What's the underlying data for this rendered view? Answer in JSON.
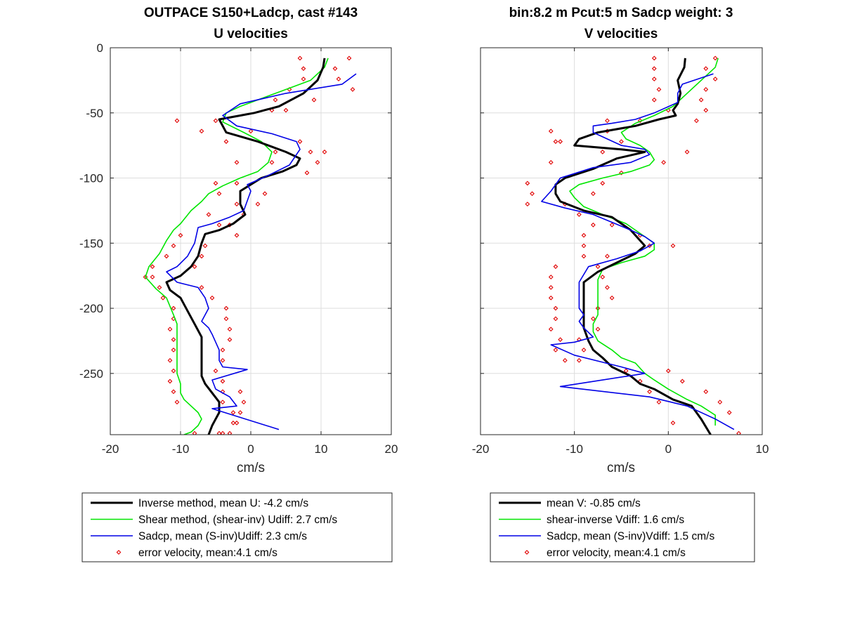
{
  "colors": {
    "inverse": "#000000",
    "shear": "#00e600",
    "sadcp": "#0000e6",
    "error": "#e00000",
    "grid": "#dddddd",
    "axes": "#262626"
  },
  "chart_data": [
    {
      "type": "line",
      "title": "OUTPACE S150+Ladcp, cast #143",
      "subtitle": "U velocities",
      "xlabel": "cm/s",
      "ylabel": "",
      "xlim": [
        -20,
        20
      ],
      "ylim": [
        -297,
        0
      ],
      "xticks": [
        -20,
        -10,
        0,
        10,
        20
      ],
      "yticks": [
        0,
        -50,
        -100,
        -150,
        -200,
        -250
      ],
      "grid": true,
      "legend_position": "below",
      "series": [
        {
          "name": "Inverse method, mean U:  -4.2 cm/s",
          "style": "line-thick",
          "color_key": "inverse",
          "x": [
            10.5,
            10.3,
            9.5,
            7.5,
            4.0,
            0.5,
            -1.5,
            -4.5,
            -3.5,
            1.0,
            5.0,
            7.0,
            6.5,
            4.5,
            1.5,
            -1.5,
            -1.5,
            -0.8,
            -2.5,
            -4.5,
            -6.5,
            -7.0,
            -7.5,
            -8.5,
            -10.0,
            -12.0,
            -11.5,
            -10.0,
            -9.0,
            -8.0,
            -7.0,
            -7.0,
            -7.0,
            -7.0,
            -6.5,
            -5.5,
            -4.5,
            -4.5,
            -5.0,
            -5.5,
            -6.0
          ],
          "y": [
            -8,
            -15,
            -25,
            -35,
            -45,
            -50,
            -52,
            -55,
            -65,
            -72,
            -80,
            -85,
            -90,
            -95,
            -100,
            -110,
            -120,
            -128,
            -135,
            -140,
            -143,
            -150,
            -160,
            -168,
            -175,
            -180,
            -186,
            -192,
            -202,
            -212,
            -222,
            -232,
            -242,
            -252,
            -258,
            -265,
            -272,
            -280,
            -285,
            -290,
            -297
          ]
        },
        {
          "name": "Shear method, (shear-inv)  Udiff:  2.7 cm/s",
          "style": "line",
          "color_key": "shear",
          "x": [
            11.0,
            10.5,
            8.5,
            5.0,
            1.0,
            -1.5,
            -3.5,
            -4.0,
            -1.0,
            1.5,
            3.0,
            2.5,
            1.0,
            -1.5,
            -4.0,
            -6.0,
            -7.0,
            -8.5,
            -10.0,
            -11.0,
            -12.0,
            -13.0,
            -14.5,
            -15.0,
            -13.5,
            -12.0,
            -11.0,
            -10.5,
            -10.5,
            -10.5,
            -10.5,
            -10.5,
            -10.0,
            -10.0,
            -9.5,
            -8.5,
            -7.5,
            -7.0,
            -7.5,
            -8.5,
            -9.5
          ],
          "y": [
            -8,
            -15,
            -25,
            -32,
            -40,
            -45,
            -50,
            -57,
            -65,
            -72,
            -80,
            -88,
            -95,
            -100,
            -106,
            -112,
            -118,
            -125,
            -135,
            -140,
            -148,
            -158,
            -168,
            -176,
            -185,
            -192,
            -205,
            -212,
            -222,
            -232,
            -242,
            -250,
            -258,
            -265,
            -270,
            -275,
            -280,
            -285,
            -290,
            -295,
            -297
          ]
        },
        {
          "name": "Sadcp, mean (S-inv)Udiff: 2.3 cm/s",
          "style": "line",
          "color_key": "sadcp",
          "x": [
            15.0,
            13.0,
            5.0,
            -1.5,
            -4.0,
            -2.0,
            3.0,
            6.5,
            7.0,
            5.5,
            2.5,
            -0.5,
            0.0,
            -1.0,
            -3.0,
            -5.5,
            -7.5,
            -8.0,
            -9.0,
            -10.5,
            -12.0,
            -10.5,
            -7.5,
            -6.5,
            -6.0,
            -7.0,
            -6.0,
            -5.5,
            -4.5,
            -4.5,
            -4.0,
            -0.5,
            -5.5,
            -5.0,
            -3.0,
            -2.0,
            -5.5,
            4.0
          ],
          "y": [
            -20,
            -28,
            -35,
            -43,
            -52,
            -60,
            -66,
            -72,
            -78,
            -90,
            -98,
            -105,
            -110,
            -125,
            -130,
            -135,
            -138,
            -150,
            -160,
            -168,
            -172,
            -180,
            -184,
            -192,
            -200,
            -210,
            -215,
            -220,
            -232,
            -240,
            -245,
            -247,
            -255,
            -262,
            -268,
            -275,
            -277,
            -293
          ]
        },
        {
          "name": "error velocity, mean:4.1 cm/s",
          "style": "markers",
          "color_key": "error",
          "x": [
            7.0,
            14.0,
            7.5,
            12.0,
            7.5,
            12.5,
            5.5,
            14.5,
            3.5,
            9.0,
            3.0,
            5.0,
            -5.0,
            -10.5,
            -7.0,
            0.0,
            7.0,
            -3.5,
            3.5,
            8.5,
            10.5,
            -2.0,
            3.0,
            9.5,
            8.0,
            -2.0,
            -5.0,
            -4.5,
            2.0,
            1.0,
            -2.0,
            -1.0,
            -6.0,
            -3.0,
            -4.5,
            -10.0,
            -2.0,
            -11.0,
            -6.5,
            -12.0,
            -7.0,
            -14.0,
            -8.0,
            -15.0,
            -14.0,
            -7.0,
            -13.0,
            -5.5,
            -12.5,
            -3.5,
            -11.0,
            -3.5,
            -11.0,
            -3.0,
            -11.5,
            -3.0,
            -11.0,
            -4.0,
            -11.0,
            -4.0,
            -11.5,
            -5.0,
            -11.0,
            -4.0,
            -11.5,
            -4.0,
            -11.0,
            -4.0,
            -10.5,
            -1.5,
            -1.0,
            -2.5,
            -1.5,
            -2.0,
            -2.5,
            -3.0,
            -4.5,
            -4.0,
            -8.0
          ],
          "y": [
            -8,
            -8,
            -16,
            -16,
            -24,
            -24,
            -32,
            -32,
            -40,
            -40,
            -48,
            -48,
            -56,
            -56,
            -64,
            -64,
            -72,
            -72,
            -80,
            -80,
            -80,
            -88,
            -88,
            -88,
            -96,
            -104,
            -104,
            -112,
            -112,
            -120,
            -120,
            -128,
            -128,
            -136,
            -136,
            -144,
            -144,
            -152,
            -152,
            -160,
            -160,
            -168,
            -168,
            -176,
            -176,
            -184,
            -184,
            -192,
            -192,
            -200,
            -200,
            -208,
            -208,
            -216,
            -216,
            -224,
            -224,
            -232,
            -232,
            -240,
            -240,
            -248,
            -248,
            -256,
            -256,
            -264,
            -264,
            -272,
            -272,
            -264,
            -272,
            -280,
            -280,
            -288,
            -288,
            -296,
            -296,
            -296,
            -296
          ]
        }
      ]
    },
    {
      "type": "line",
      "title": "bin:8.2 m  Pcut:5 m  Sadcp weight: 3",
      "subtitle": "V velocities",
      "xlabel": "cm/s",
      "ylabel": "",
      "xlim": [
        -20,
        10
      ],
      "ylim": [
        -297,
        0
      ],
      "xticks": [
        -20,
        -10,
        0,
        10
      ],
      "yticks": [
        0,
        -50,
        -100,
        -150,
        -200,
        -250
      ],
      "grid": true,
      "legend_position": "below",
      "series": [
        {
          "name": "mean V:  -0.85 cm/s",
          "style": "line-thick",
          "color_key": "inverse",
          "x": [
            1.8,
            1.7,
            1.0,
            1.3,
            1.0,
            0.5,
            0.8,
            -1.0,
            -3.5,
            -7.5,
            -9.5,
            -10.0,
            -5.0,
            -2.5,
            -5.5,
            -8.0,
            -11.0,
            -12.0,
            -12.0,
            -11.5,
            -9.0,
            -6.0,
            -4.0,
            -2.5,
            -3.5,
            -5.5,
            -7.5,
            -9.0,
            -9.0,
            -9.0,
            -9.0,
            -9.0,
            -8.5,
            -8.0,
            -7.0,
            -6.0,
            -4.0,
            -3.0,
            -1.5,
            0.5,
            2.5,
            3.5,
            4.5
          ],
          "y": [
            -8,
            -15,
            -25,
            -35,
            -43,
            -48,
            -52,
            -55,
            -60,
            -65,
            -70,
            -75,
            -78,
            -80,
            -85,
            -93,
            -100,
            -105,
            -112,
            -118,
            -125,
            -130,
            -140,
            -152,
            -158,
            -165,
            -172,
            -180,
            -187,
            -195,
            -205,
            -215,
            -225,
            -232,
            -238,
            -245,
            -252,
            -258,
            -262,
            -270,
            -275,
            -285,
            -297
          ]
        },
        {
          "name": "shear-inverse Vdiff:  1.6 cm/s",
          "style": "line",
          "color_key": "shear",
          "x": [
            5.3,
            5.0,
            3.5,
            2.0,
            0.5,
            -1.5,
            -3.5,
            -5.0,
            -4.5,
            -3.0,
            -2.0,
            -1.5,
            -2.0,
            -4.0,
            -7.0,
            -9.5,
            -10.5,
            -10.0,
            -9.0,
            -7.0,
            -4.5,
            -2.5,
            -1.5,
            -1.5,
            -2.5,
            -5.0,
            -7.0,
            -7.5,
            -7.5,
            -7.5,
            -7.5,
            -8.0,
            -8.0,
            -7.5,
            -6.0,
            -5.0,
            -3.5,
            -2.5,
            -1.5,
            0.0,
            2.0,
            3.5,
            5.0,
            5.0
          ],
          "y": [
            -8,
            -15,
            -25,
            -35,
            -45,
            -52,
            -58,
            -65,
            -70,
            -75,
            -80,
            -86,
            -90,
            -95,
            -100,
            -105,
            -110,
            -115,
            -122,
            -128,
            -135,
            -145,
            -150,
            -155,
            -160,
            -165,
            -170,
            -178,
            -185,
            -195,
            -205,
            -212,
            -218,
            -225,
            -232,
            -238,
            -242,
            -250,
            -255,
            -262,
            -270,
            -275,
            -282,
            -290
          ]
        },
        {
          "name": "Sadcp, mean (S-inv)Vdiff: 1.5 cm/s",
          "style": "line",
          "color_key": "sadcp",
          "x": [
            4.8,
            1.5,
            1.0,
            1.0,
            -1.5,
            -3.5,
            -6.0,
            -8.0,
            -8.0,
            -5.0,
            -2.5,
            -2.0,
            -4.0,
            -8.0,
            -11.5,
            -12.5,
            -13.5,
            -11.0,
            -8.0,
            -4.0,
            -2.5,
            -1.5,
            -3.0,
            -5.5,
            -8.5,
            -9.5,
            -9.5,
            -9.5,
            -9.0,
            -9.5,
            -9.0,
            -8.0,
            -10.0,
            -12.5,
            -10.0,
            -5.0,
            -2.5,
            -11.5,
            -2.0,
            2.0,
            5.0,
            7.0
          ],
          "y": [
            -20,
            -28,
            -35,
            -42,
            -50,
            -55,
            -58,
            -60,
            -65,
            -75,
            -78,
            -82,
            -88,
            -92,
            -100,
            -110,
            -118,
            -123,
            -128,
            -140,
            -145,
            -150,
            -156,
            -162,
            -168,
            -180,
            -190,
            -200,
            -205,
            -210,
            -215,
            -222,
            -226,
            -228,
            -236,
            -245,
            -250,
            -260,
            -268,
            -275,
            -285,
            -293
          ]
        },
        {
          "name": "error velocity, mean:4.1 cm/s",
          "style": "markers",
          "color_key": "error",
          "x": [
            -1.5,
            5.0,
            -1.5,
            4.0,
            -1.5,
            5.0,
            -1.0,
            4.0,
            -1.5,
            3.5,
            0.0,
            4.0,
            -3.0,
            3.0,
            -6.5,
            -12.5,
            -6.5,
            -12.0,
            -5.0,
            -11.5,
            -7.0,
            2.0,
            -0.5,
            -12.5,
            -5.0,
            -15.0,
            -7.0,
            -14.5,
            -8.0,
            -15.0,
            -11.0,
            -9.5,
            -8.0,
            -6.0,
            -9.0,
            -3.0,
            -9.0,
            -2.0,
            -6.5,
            0.5,
            -9.0,
            -12.0,
            -7.5,
            -12.5,
            -7.0,
            -12.5,
            -6.5,
            -12.5,
            -6.0,
            -12.0,
            -7.5,
            -12.0,
            -8.0,
            -12.5,
            -7.5,
            -11.5,
            -9.5,
            -12.0,
            -9.0,
            -11.0,
            -9.5,
            0.0,
            -4.5,
            1.5,
            -3.0,
            4.0,
            -2.0,
            5.5,
            -1.0,
            6.5,
            0.5,
            7.5
          ],
          "y": [
            -8,
            -8,
            -16,
            -16,
            -24,
            -24,
            -32,
            -32,
            -40,
            -40,
            -48,
            -48,
            -56,
            -56,
            -56,
            -64,
            -64,
            -72,
            -72,
            -72,
            -80,
            -80,
            -88,
            -88,
            -96,
            -104,
            -104,
            -112,
            -112,
            -120,
            -120,
            -128,
            -136,
            -136,
            -144,
            -144,
            -152,
            -152,
            -160,
            -152,
            -160,
            -168,
            -168,
            -176,
            -176,
            -184,
            -184,
            -192,
            -192,
            -200,
            -200,
            -208,
            -208,
            -216,
            -216,
            -224,
            -224,
            -232,
            -232,
            -240,
            -240,
            -248,
            -248,
            -256,
            -256,
            -264,
            -264,
            -272,
            -272,
            -280,
            -288,
            -296
          ]
        }
      ]
    }
  ]
}
